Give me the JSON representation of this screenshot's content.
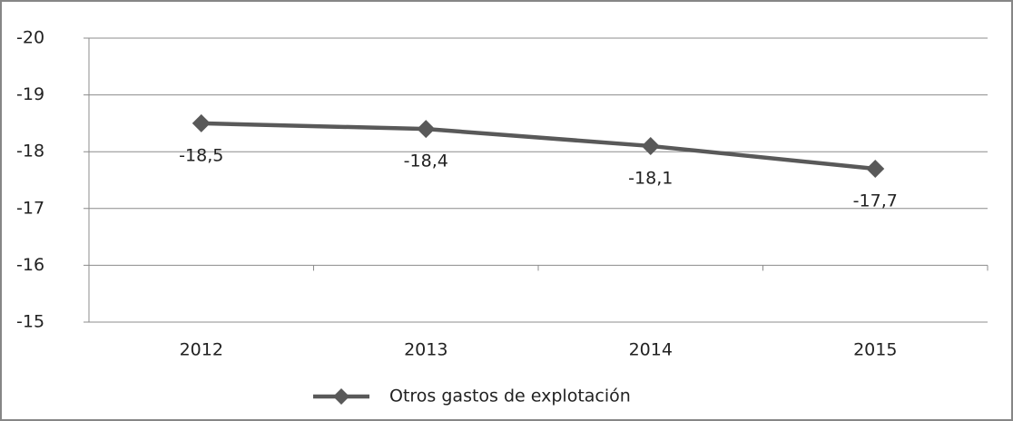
{
  "chart_data": {
    "type": "line",
    "categories": [
      "2012",
      "2013",
      "2014",
      "2015"
    ],
    "series": [
      {
        "name": "Otros gastos de explotación",
        "color": "#595959",
        "values": [
          -18.5,
          -18.4,
          -18.1,
          -17.7
        ],
        "value_labels": [
          "-18,5",
          "-18,4",
          "-18,1",
          "-17,7"
        ]
      }
    ],
    "ylim": [
      -15,
      -20
    ],
    "yticks": [
      -20,
      -19,
      -18,
      -17,
      -16,
      -15
    ],
    "grid": true,
    "legend": "bottom"
  }
}
